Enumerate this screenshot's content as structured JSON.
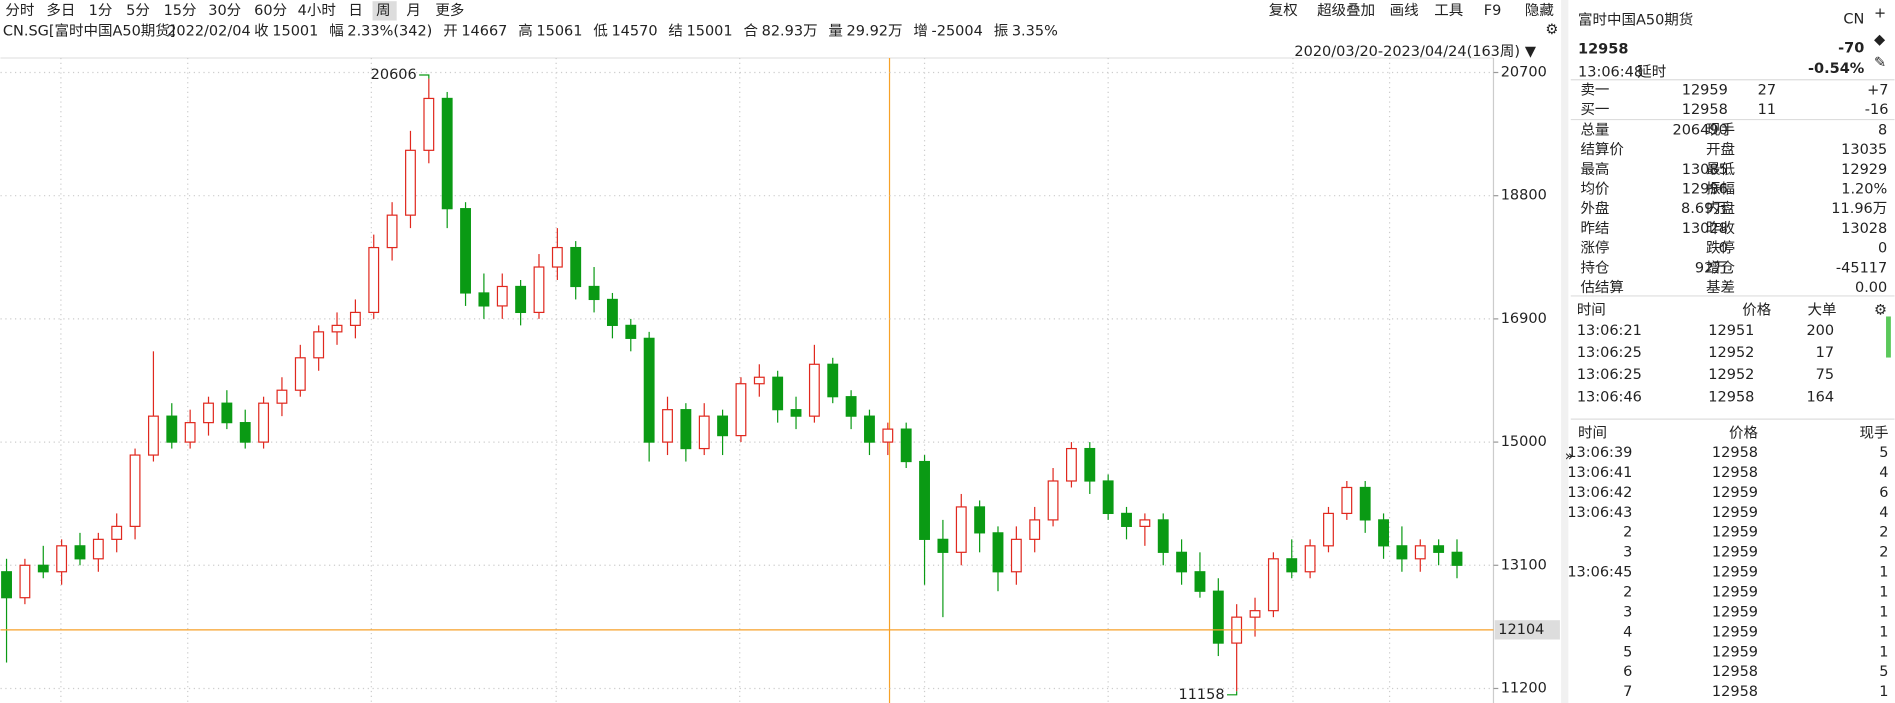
{
  "toolbar": {
    "periods": [
      "分时",
      "多日",
      "1分",
      "5分",
      "15分",
      "30分",
      "60分",
      "4小时",
      "日",
      "周",
      "月",
      "更多"
    ],
    "active_period": 9,
    "tools": [
      "复权",
      "超级叠加",
      "画线",
      "工具",
      "F9",
      "隐藏"
    ]
  },
  "info": {
    "symbol": "CN.SG[富时中国A50期货]",
    "date": "2022/02/04",
    "fields": [
      {
        "label": "收",
        "value": 15001,
        "color": "#d00"
      },
      {
        "label": "幅",
        "value": "2.33%(342)",
        "color": "#d00"
      },
      {
        "label": "开",
        "value": 14667,
        "color": "#d00"
      },
      {
        "label": "高",
        "value": 15061,
        "color": "#d00"
      },
      {
        "label": "低",
        "value": 14570,
        "color": "#080"
      },
      {
        "label": "结",
        "value": 15001,
        "color": "#d00"
      },
      {
        "label": "合",
        "value": "82.93万",
        "color": "#222"
      },
      {
        "label": "量",
        "value": "29.92万",
        "color": "#222"
      },
      {
        "label": "增",
        "value": -25004,
        "color": "#080"
      },
      {
        "label": "振",
        "value": "3.35%",
        "color": "#222"
      }
    ]
  },
  "chart_data": {
    "type": "candlestick",
    "range_label": "2020/03/20-2023/04/24(163周)",
    "open": [
      13000,
      12600,
      13100,
      13000,
      13400,
      13200,
      13500,
      13700,
      14800,
      15400,
      15000,
      15300,
      15600,
      15300,
      15000,
      15600,
      15800,
      16300,
      16700,
      16800,
      17000,
      18000,
      18500,
      19500,
      20300,
      18600,
      17300,
      17100,
      17400,
      17000,
      17700,
      18000,
      17400,
      17200,
      16800,
      16600,
      15000,
      15500,
      14900,
      15400,
      15100,
      15900,
      16000,
      15500,
      15400,
      16200,
      15700,
      15400,
      15000,
      15200,
      14700,
      13500,
      13300,
      14000,
      13600,
      13000,
      13500,
      13800,
      14400,
      14900,
      14400,
      13900,
      13700,
      13800,
      13300,
      13000,
      12700,
      11900,
      12300,
      12400,
      13200,
      13000,
      13400,
      13900,
      14300,
      13800,
      13400,
      13200,
      13400,
      13300
    ],
    "high": [
      13200,
      13200,
      13400,
      13500,
      13600,
      13600,
      13900,
      14900,
      16400,
      15600,
      15500,
      15700,
      15800,
      15500,
      15700,
      16000,
      16500,
      16800,
      17000,
      17200,
      18200,
      18700,
      19800,
      20606,
      20400,
      18700,
      17600,
      17600,
      17500,
      17900,
      18300,
      18100,
      17700,
      17300,
      16900,
      16700,
      15700,
      15600,
      15600,
      15500,
      16000,
      16200,
      16100,
      15700,
      16500,
      16300,
      15800,
      15500,
      15300,
      15300,
      14800,
      13800,
      14200,
      14100,
      13700,
      13700,
      14000,
      14600,
      15000,
      15000,
      14500,
      14000,
      13900,
      13900,
      13500,
      13300,
      12900,
      12500,
      12600,
      13300,
      13500,
      13500,
      14000,
      14400,
      14400,
      13900,
      13700,
      13500,
      13500,
      13500
    ],
    "low": [
      11600,
      12500,
      12900,
      12800,
      13100,
      13000,
      13300,
      13500,
      14700,
      14900,
      14900,
      15100,
      15200,
      14900,
      14900,
      15400,
      15700,
      16100,
      16500,
      16600,
      16900,
      17800,
      18300,
      19300,
      18300,
      17100,
      16900,
      16900,
      16800,
      16900,
      17500,
      17200,
      17000,
      16600,
      16400,
      14700,
      14800,
      14700,
      14800,
      14800,
      15000,
      15700,
      15300,
      15200,
      15300,
      15600,
      15200,
      14800,
      14800,
      14600,
      12800,
      12300,
      13100,
      13300,
      12700,
      12800,
      13300,
      13700,
      14300,
      14200,
      13800,
      13500,
      13400,
      13100,
      12800,
      12600,
      11700,
      11158,
      12000,
      12300,
      12900,
      12900,
      13300,
      13800,
      13600,
      13200,
      13000,
      13000,
      13100,
      12900
    ],
    "close": [
      12600,
      13100,
      13000,
      13400,
      13200,
      13500,
      13700,
      14800,
      15400,
      15000,
      15300,
      15600,
      15300,
      15000,
      15600,
      15800,
      16300,
      16700,
      16800,
      17000,
      18000,
      18500,
      19500,
      20300,
      18600,
      17300,
      17100,
      17400,
      17000,
      17700,
      18000,
      17400,
      17200,
      16800,
      16600,
      15000,
      15500,
      14900,
      15400,
      15100,
      15900,
      16000,
      15500,
      15400,
      16200,
      15700,
      15400,
      15000,
      15200,
      14700,
      13500,
      13300,
      14000,
      13600,
      13000,
      13500,
      13800,
      14400,
      14900,
      14400,
      13900,
      13700,
      13800,
      13300,
      13000,
      12700,
      11900,
      12300,
      12400,
      13200,
      13000,
      13400,
      13900,
      14300,
      13800,
      13400,
      13200,
      13400,
      13300,
      13100
    ],
    "up_color": "#e0281e",
    "down_color": "#0a9a14",
    "ylim": [
      10976,
      20924
    ],
    "yticks": [
      20700,
      18800,
      16900,
      15000,
      13100,
      11200
    ],
    "grid": true,
    "high_label": "20606",
    "low_label": "11158",
    "crosshair_value": 12104,
    "crosshair_color": "#f7a128"
  },
  "quote": {
    "name": "富时中国A50期货",
    "code": "CN",
    "price": 12958,
    "change": -70,
    "change_pct": "-0.54%",
    "time": "13:06:48",
    "delay": "延时",
    "book": [
      {
        "label": "卖一",
        "price": 12959,
        "qty": 27,
        "chg": "+7",
        "chg_color": "#d00"
      },
      {
        "label": "买一",
        "price": 12958,
        "qty": 11,
        "chg": "-16",
        "chg_color": "#080"
      }
    ],
    "stats": [
      [
        {
          "label": "总量",
          "value": 206490,
          "color": "#222"
        },
        {
          "label": "现手",
          "value": 8,
          "color": "#222"
        }
      ],
      [
        {
          "label": "结算价"
        },
        {
          "label": "开盘",
          "value": 13035,
          "color": "#d00"
        }
      ],
      [
        {
          "label": "最高",
          "value": 13085,
          "color": "#d00"
        },
        {
          "label": "最低",
          "value": 12929,
          "color": "#080"
        }
      ],
      [
        {
          "label": "均价",
          "value": 12996,
          "color": "#080"
        },
        {
          "label": "振幅",
          "value": "1.20%",
          "color": "#222"
        }
      ],
      [
        {
          "label": "外盘",
          "value": "8.69万",
          "color": "#d00"
        },
        {
          "label": "内盘",
          "value": "11.96万",
          "color": "#080"
        }
      ],
      [
        {
          "label": "昨结",
          "value": 13028,
          "color": "#222"
        },
        {
          "label": "昨收",
          "value": 13028,
          "color": "#222"
        }
      ],
      [
        {
          "label": "涨停",
          "value": 0,
          "color": "#d00"
        },
        {
          "label": "跌停",
          "value": 0,
          "color": "#080"
        }
      ],
      [
        {
          "label": "持仓",
          "value": "92万",
          "color": "#222"
        },
        {
          "label": "增仓",
          "value": -45117,
          "color": "#080"
        }
      ],
      [
        {
          "label": "估结算"
        },
        {
          "label": "基差",
          "value": "0.00",
          "color": "#222"
        }
      ]
    ]
  },
  "big_trades": {
    "headers": [
      "时间",
      "价格",
      "大单"
    ],
    "rows": [
      [
        "13:06:21",
        12951,
        200
      ],
      [
        "13:06:25",
        12952,
        17
      ],
      [
        "13:06:25",
        12952,
        75
      ],
      [
        "13:06:46",
        12958,
        164
      ]
    ]
  },
  "ticks": {
    "headers": [
      "时间",
      "价格",
      "现手"
    ],
    "rows": [
      {
        "time": "13:06:39",
        "price": 12958,
        "qty": 5,
        "color": "#d00"
      },
      {
        "time": "13:06:41",
        "price": 12958,
        "qty": 4,
        "color": "#080"
      },
      {
        "time": "13:06:42",
        "price": 12959,
        "qty": 6,
        "color": "#d00"
      },
      {
        "time": "13:06:43",
        "price": 12959,
        "qty": 4,
        "color": "#080"
      },
      {
        "time": "2",
        "price": 12959,
        "qty": 2,
        "color": "#080"
      },
      {
        "time": "3",
        "price": 12959,
        "qty": 2,
        "color": "#080"
      },
      {
        "time": "13:06:45",
        "price": 12959,
        "qty": 1,
        "color": "#080"
      },
      {
        "time": "2",
        "price": 12959,
        "qty": 1,
        "color": "#080"
      },
      {
        "time": "3",
        "price": 12959,
        "qty": 1,
        "color": "#080"
      },
      {
        "time": "4",
        "price": 12959,
        "qty": 1,
        "color": "#080"
      },
      {
        "time": "5",
        "price": 12959,
        "qty": 1,
        "color": "#080"
      },
      {
        "time": "6",
        "price": 12958,
        "qty": 5,
        "color": "#080"
      },
      {
        "time": "7",
        "price": 12958,
        "qty": 1,
        "color": "#080"
      }
    ]
  }
}
